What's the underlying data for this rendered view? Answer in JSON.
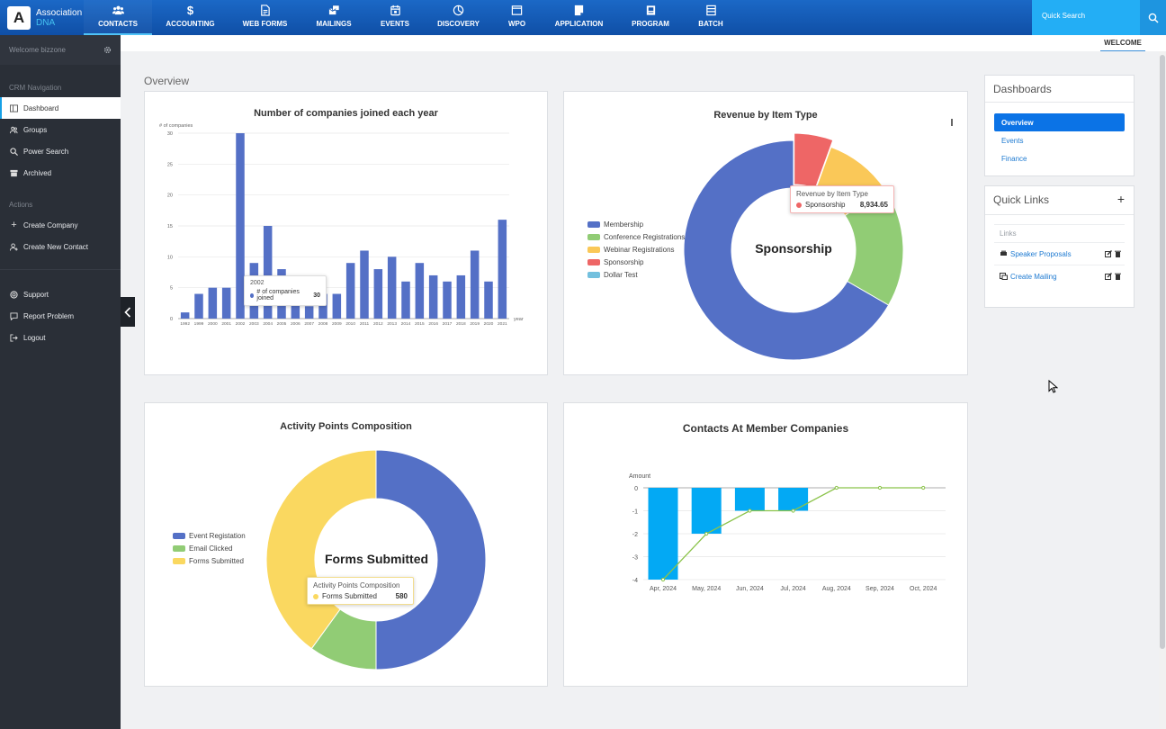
{
  "app": {
    "logo_letter": "A",
    "logo_line1": "Association",
    "logo_line2": "DNA"
  },
  "nav": [
    {
      "label": "CONTACTS",
      "icon": "contacts-icon",
      "active": true
    },
    {
      "label": "ACCOUNTING",
      "icon": "dollar-icon"
    },
    {
      "label": "WEB FORMS",
      "icon": "form-icon"
    },
    {
      "label": "MAILINGS",
      "icon": "mailings-icon"
    },
    {
      "label": "EVENTS",
      "icon": "calendar-icon"
    },
    {
      "label": "DISCOVERY",
      "icon": "pie-icon"
    },
    {
      "label": "WPO",
      "icon": "window-icon"
    },
    {
      "label": "APPLICATION",
      "icon": "application-icon"
    },
    {
      "label": "PROGRAM",
      "icon": "program-icon"
    },
    {
      "label": "BATCH",
      "icon": "batch-icon"
    }
  ],
  "search": {
    "placeholder": "Quick Search"
  },
  "sidebar": {
    "welcome": "Welcome bizzone",
    "crm_heading": "CRM Navigation",
    "items": [
      {
        "label": "Dashboard",
        "icon": "dashboard-icon",
        "active": true
      },
      {
        "label": "Groups",
        "icon": "groups-icon"
      },
      {
        "label": "Power Search",
        "icon": "search-icon"
      },
      {
        "label": "Archived",
        "icon": "archive-icon"
      }
    ],
    "actions_heading": "Actions",
    "actions": [
      {
        "label": "Create Company",
        "icon": "plus-icon"
      },
      {
        "label": "Create New Contact",
        "icon": "add-user-icon"
      }
    ],
    "bottom": [
      {
        "label": "Support",
        "icon": "support-icon"
      },
      {
        "label": "Report Problem",
        "icon": "report-icon"
      },
      {
        "label": "Logout",
        "icon": "logout-icon"
      }
    ]
  },
  "welcome_tab": "WELCOME",
  "page_title": "Overview",
  "dashboards": {
    "title": "Dashboards",
    "items": [
      {
        "label": "Overview",
        "active": true
      },
      {
        "label": "Events"
      },
      {
        "label": "Finance"
      }
    ]
  },
  "quick_links": {
    "title": "Quick Links",
    "sub": "Links",
    "items": [
      {
        "label": "Speaker Proposals",
        "icon": "speaker-icon"
      },
      {
        "label": "Create Mailing",
        "icon": "mailing-icon"
      }
    ]
  },
  "tooltips": {
    "companies": {
      "title": "2002",
      "series": "# of companies joined",
      "value": "30"
    },
    "revenue": {
      "title": "Revenue by Item Type",
      "series": "Sponsorship",
      "value": "8,934.65"
    },
    "activity": {
      "title": "Activity Points Composition",
      "series": "Forms Submitted",
      "value": "580"
    }
  },
  "chart_data": [
    {
      "type": "bar",
      "title": "Number of companies joined each year",
      "ylabel": "# of companies",
      "xlabel": "year",
      "ylim": [
        0,
        30
      ],
      "yticks": [
        0,
        5,
        10,
        15,
        20,
        25,
        30
      ],
      "categories": [
        "1992",
        "1999",
        "2000",
        "2001",
        "2002",
        "2003",
        "2004",
        "2005",
        "2006",
        "2007",
        "2008",
        "2009",
        "2010",
        "2011",
        "2012",
        "2013",
        "2014",
        "2015",
        "2016",
        "2017",
        "2018",
        "2019",
        "2020",
        "2021"
      ],
      "series": [
        {
          "name": "# of companies joined",
          "values": [
            1,
            4,
            5,
            5,
            30,
            9,
            15,
            8,
            4,
            2,
            4,
            4,
            9,
            11,
            8,
            10,
            6,
            9,
            7,
            6,
            7,
            11,
            6,
            16
          ]
        }
      ],
      "color": "#5470c6"
    },
    {
      "type": "pie",
      "title": "Revenue by Item Type",
      "center_label": "Sponsorship",
      "labels": [
        "Membership",
        "Conference Registrations",
        "Webinar Registrations",
        "Sponsorship",
        "Dollar Test"
      ],
      "values": [
        60,
        16,
        9,
        5,
        0
      ],
      "colors": [
        "#5470c6",
        "#91cc75",
        "#fac858",
        "#ee6666",
        "#73c0de"
      ]
    },
    {
      "type": "pie",
      "title": "Activity Points Composition",
      "center_label": "Forms Submitted",
      "labels": [
        "Event Registation",
        "Email Clicked",
        "Forms Submitted"
      ],
      "values": [
        50,
        10,
        40
      ],
      "colors": [
        "#5470c6",
        "#91cc75",
        "#fad860"
      ]
    },
    {
      "type": "bar",
      "title": "Contacts At Member Companies",
      "ylabel": "Amount",
      "ylim": [
        -4,
        0
      ],
      "yticks": [
        0,
        -1,
        -2,
        -3,
        -4
      ],
      "categories": [
        "Apr, 2024",
        "May, 2024",
        "Jun, 2024",
        "Jul, 2024",
        "Aug, 2024",
        "Sep, 2024",
        "Oct, 2024"
      ],
      "series": [
        {
          "values": [
            -4,
            -2,
            -1,
            -1,
            0,
            0,
            0
          ],
          "color": "#03a9f4"
        },
        {
          "values": [
            -4,
            -2,
            -1,
            -1,
            0,
            0,
            0
          ],
          "color": "#8bc34a",
          "line": true
        }
      ]
    }
  ]
}
